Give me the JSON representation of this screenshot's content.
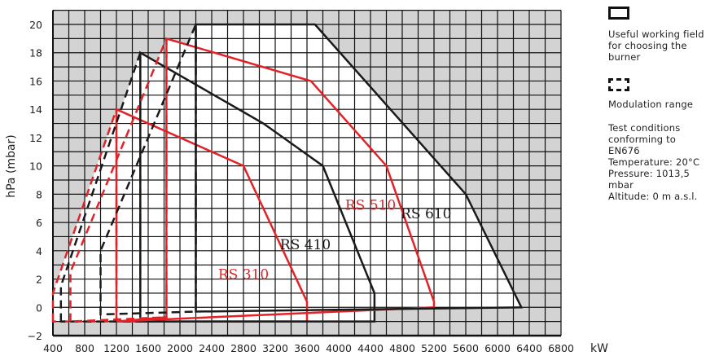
{
  "chart_data": {
    "type": "area",
    "title": "",
    "xlabel": "kW",
    "ylabel": "hPa (mbar)",
    "xlim": [
      400,
      6800
    ],
    "ylim": [
      -2,
      21
    ],
    "xticks": [
      400,
      800,
      1200,
      1600,
      2000,
      2400,
      2800,
      3200,
      3600,
      4000,
      4400,
      4800,
      5200,
      5600,
      6000,
      6400,
      6800
    ],
    "yticks": [
      -2,
      0,
      2,
      4,
      6,
      8,
      10,
      12,
      14,
      16,
      18,
      20
    ],
    "grid": true,
    "series": [
      {
        "name": "RS 310",
        "color": "#e32228",
        "label_at": [
          2800,
          2.0
        ],
        "working_field": [
          [
            1200,
            -1
          ],
          [
            1200,
            14
          ],
          [
            2800,
            10
          ],
          [
            3600,
            0.4
          ],
          [
            3600,
            -1
          ]
        ],
        "modulation": [
          [
            400,
            -1
          ],
          [
            400,
            1
          ],
          [
            1200,
            14
          ],
          [
            1200,
            -1
          ]
        ]
      },
      {
        "name": "RS 410",
        "color": "#1a1a1a",
        "label_at": [
          3580,
          4.1
        ],
        "working_field": [
          [
            1500,
            -1
          ],
          [
            1500,
            18
          ],
          [
            3050,
            13
          ],
          [
            3800,
            10
          ],
          [
            4450,
            1
          ],
          [
            4450,
            -1
          ]
        ],
        "modulation": [
          [
            500,
            -1
          ],
          [
            500,
            1.5
          ],
          [
            1500,
            18
          ],
          [
            1500,
            -1
          ]
        ]
      },
      {
        "name": "RS 510",
        "color": "#e32228",
        "label_at": [
          4400,
          6.9
        ],
        "working_field": [
          [
            1830,
            -0.7
          ],
          [
            1830,
            19
          ],
          [
            3650,
            16
          ],
          [
            4600,
            10
          ],
          [
            5200,
            0.4
          ],
          [
            5200,
            0
          ],
          [
            1200,
            -1
          ]
        ],
        "modulation": [
          [
            620,
            -1
          ],
          [
            620,
            2.5
          ],
          [
            1830,
            19
          ],
          [
            1830,
            -0.7
          ]
        ]
      },
      {
        "name": "RS 610",
        "color": "#1a1a1a",
        "label_at": [
          5100,
          6.3
        ],
        "working_field": [
          [
            2200,
            -0.3
          ],
          [
            2200,
            20
          ],
          [
            3700,
            20
          ],
          [
            5600,
            8
          ],
          [
            6300,
            0
          ]
        ],
        "modulation": [
          [
            1000,
            -0.5
          ],
          [
            1000,
            4
          ],
          [
            2200,
            20
          ],
          [
            2200,
            -0.3
          ]
        ]
      }
    ]
  },
  "legend": {
    "working_field": "Useful working field for choosing the burner",
    "modulation": "Modulation range",
    "test_conditions": [
      "Test conditions",
      "conforming to",
      "EN676",
      "Temperature: 20°C",
      "Pressure: 1013,5",
      "mbar",
      "Altitude: 0 m a.s.l."
    ]
  }
}
